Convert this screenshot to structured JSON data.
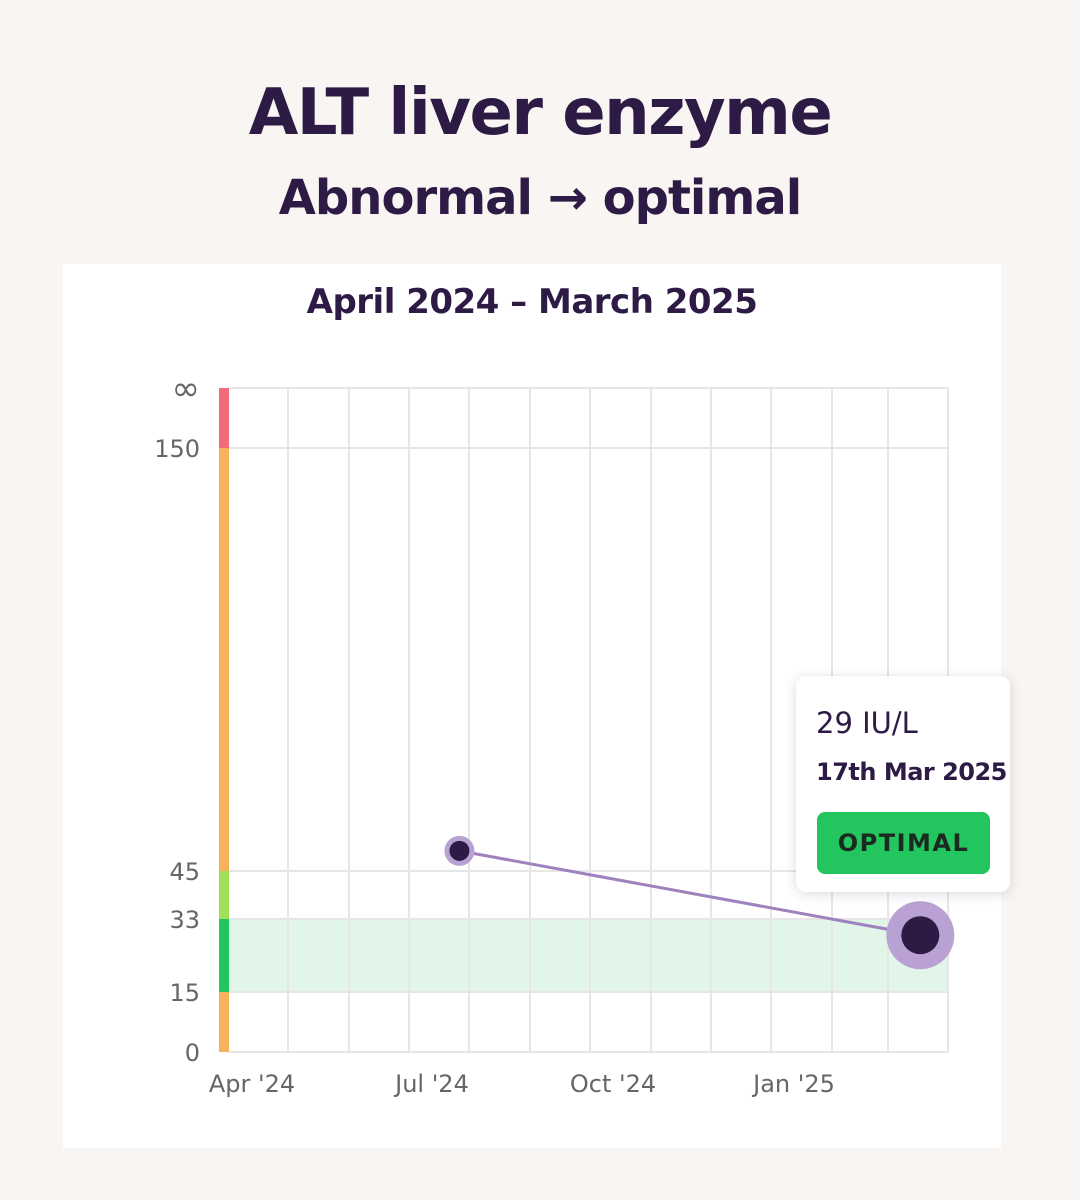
{
  "header": {
    "title": "ALT liver enzyme",
    "subtitle": "Abnormal → optimal"
  },
  "chart_data": {
    "type": "line",
    "title": "April 2024 – March 2025",
    "unit": "IU/L",
    "y_ticks": [
      "0",
      "15",
      "33",
      "45",
      "150",
      "∞"
    ],
    "x_ticks": [
      "Apr '24",
      "Jul '24",
      "Oct '24",
      "Jan '25"
    ],
    "xlim": [
      "2024-04-01",
      "2025-03-31"
    ],
    "ranges": [
      {
        "from": "0",
        "to": "15",
        "status": "abnormal",
        "color": "#f5b25a"
      },
      {
        "from": "15",
        "to": "33",
        "status": "optimal",
        "color": "#22c55e"
      },
      {
        "from": "33",
        "to": "45",
        "status": "normal",
        "color": "#a3e05a"
      },
      {
        "from": "45",
        "to": "150",
        "status": "abnormal",
        "color": "#f5b25a"
      },
      {
        "from": "150",
        "to": "∞",
        "status": "high",
        "color": "#f26b7a"
      }
    ],
    "optimal_band": [
      15,
      33
    ],
    "series": [
      {
        "points": [
          {
            "date": "2024-07-27",
            "value": 50
          },
          {
            "date": "2025-03-17",
            "value": 29
          }
        ]
      }
    ],
    "grid": true
  },
  "tooltip": {
    "value": "29 IU/L",
    "date": "17th Mar 2025",
    "status": "OPTIMAL"
  },
  "colors": {
    "text": "#2d1a45",
    "line": "#9f82bd",
    "point": "#2d1a45",
    "point_halo": "#b9a2d3",
    "optimal_band": "#e1f6e8",
    "grid": "#e6e6e6"
  }
}
